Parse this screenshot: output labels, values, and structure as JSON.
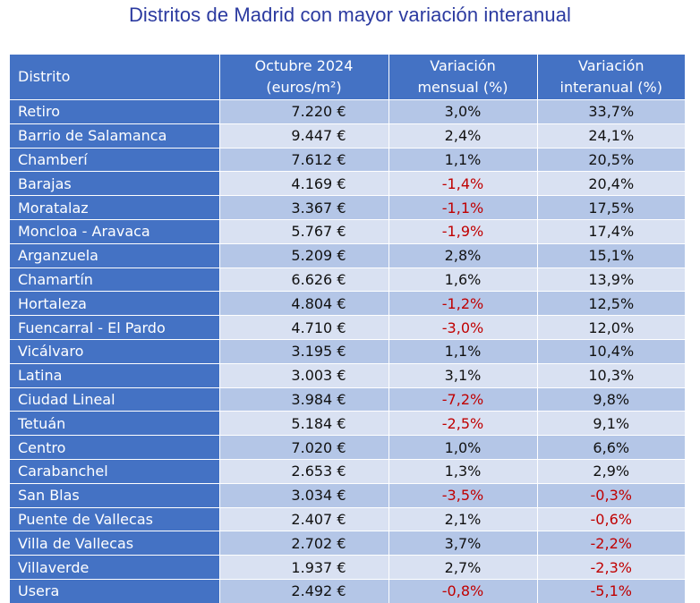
{
  "title": "Distritos de Madrid con mayor variación interanual",
  "headers": {
    "district": "Distrito",
    "price_line1": "Octubre 2024",
    "price_line2": "(euros/m²)",
    "monthly_line1": "Variación",
    "monthly_line2": "mensual (%)",
    "annual_line1": "Variación",
    "annual_line2": "interanual (%)"
  },
  "colors": {
    "header_bg": "#4472c4",
    "row_dark": "#b4c6e7",
    "row_light": "#d9e1f2",
    "negative": "#c00000",
    "title": "#2b3aa0"
  },
  "rows": [
    {
      "name": "Retiro",
      "price": "7.220 €",
      "monthly": "3,0%",
      "annual": "33,7%"
    },
    {
      "name": "Barrio de Salamanca",
      "price": "9.447 €",
      "monthly": "2,4%",
      "annual": "24,1%"
    },
    {
      "name": "Chamberí",
      "price": "7.612 €",
      "monthly": "1,1%",
      "annual": "20,5%"
    },
    {
      "name": "Barajas",
      "price": "4.169 €",
      "monthly": "-1,4%",
      "annual": "20,4%"
    },
    {
      "name": "Moratalaz",
      "price": "3.367 €",
      "monthly": "-1,1%",
      "annual": "17,5%"
    },
    {
      "name": "Moncloa - Aravaca",
      "price": "5.767 €",
      "monthly": "-1,9%",
      "annual": "17,4%"
    },
    {
      "name": "Arganzuela",
      "price": "5.209 €",
      "monthly": "2,8%",
      "annual": "15,1%"
    },
    {
      "name": "Chamartín",
      "price": "6.626 €",
      "monthly": "1,6%",
      "annual": "13,9%"
    },
    {
      "name": "Hortaleza",
      "price": "4.804 €",
      "monthly": "-1,2%",
      "annual": "12,5%"
    },
    {
      "name": "Fuencarral - El Pardo",
      "price": "4.710 €",
      "monthly": "-3,0%",
      "annual": "12,0%"
    },
    {
      "name": "Vicálvaro",
      "price": "3.195 €",
      "monthly": "1,1%",
      "annual": "10,4%"
    },
    {
      "name": "Latina",
      "price": "3.003 €",
      "monthly": "3,1%",
      "annual": "10,3%"
    },
    {
      "name": "Ciudad Lineal",
      "price": "3.984 €",
      "monthly": "-7,2%",
      "annual": "9,8%"
    },
    {
      "name": "Tetuán",
      "price": "5.184 €",
      "monthly": "-2,5%",
      "annual": "9,1%"
    },
    {
      "name": "Centro",
      "price": "7.020 €",
      "monthly": "1,0%",
      "annual": "6,6%"
    },
    {
      "name": "Carabanchel",
      "price": "2.653 €",
      "monthly": "1,3%",
      "annual": "2,9%"
    },
    {
      "name": "San Blas",
      "price": "3.034 €",
      "monthly": "-3,5%",
      "annual": "-0,3%"
    },
    {
      "name": "Puente de Vallecas",
      "price": "2.407 €",
      "monthly": "2,1%",
      "annual": "-0,6%"
    },
    {
      "name": "Villa de Vallecas",
      "price": "2.702 €",
      "monthly": "3,7%",
      "annual": "-2,2%"
    },
    {
      "name": "Villaverde",
      "price": "1.937 €",
      "monthly": "2,7%",
      "annual": "-2,3%"
    },
    {
      "name": "Usera",
      "price": "2.492 €",
      "monthly": "-0,8%",
      "annual": "-5,1%"
    }
  ]
}
